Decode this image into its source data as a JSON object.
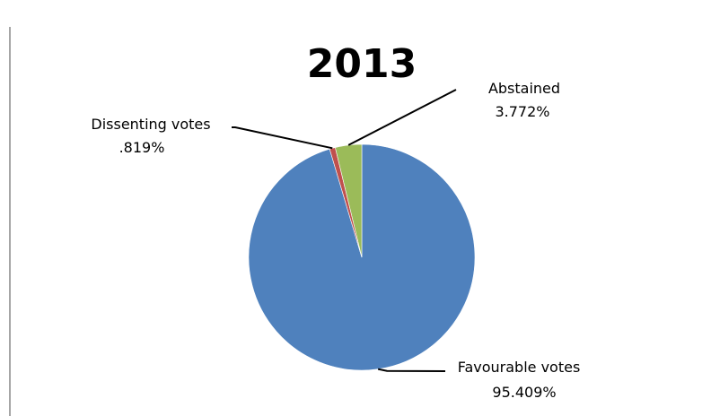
{
  "chart_data": {
    "type": "pie",
    "title": "2013",
    "slices": [
      {
        "name": "Favourable votes",
        "value": 95.409,
        "value_label": "95.409%",
        "color": "#4f81bd"
      },
      {
        "name": "Dissenting votes",
        "value": 0.819,
        "value_label": ".819%",
        "color": "#c0504d"
      },
      {
        "name": "Abstained",
        "value": 3.772,
        "value_label": "3.772%",
        "color": "#9bbb59"
      }
    ],
    "legend": "none",
    "data_labels": "outside-with-leader-lines"
  }
}
